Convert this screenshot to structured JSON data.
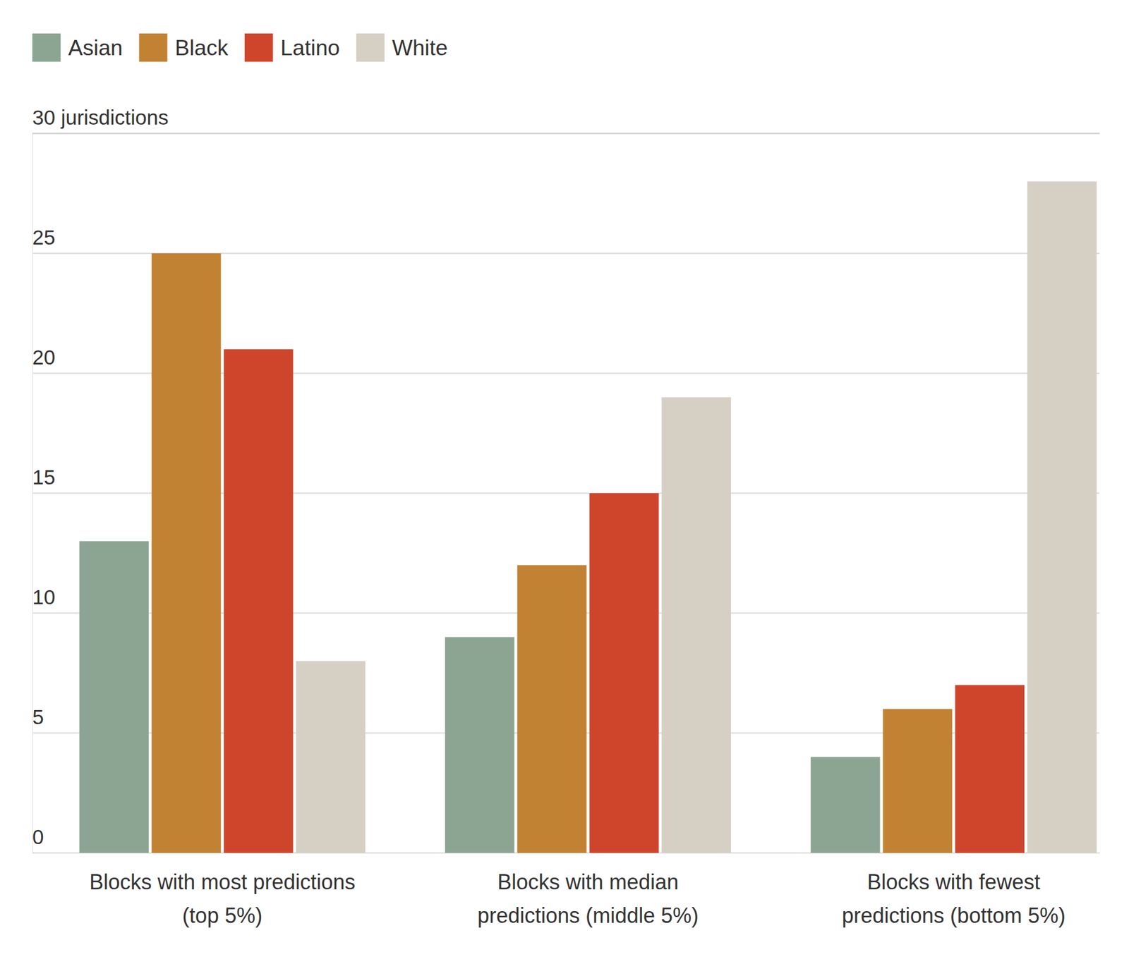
{
  "chart_data": {
    "type": "bar",
    "categories": [
      "Blocks with most predictions\n(top 5%)",
      "Blocks with median\npredictions (middle 5%)",
      "Blocks with fewest\npredictions (bottom 5%)"
    ],
    "series": [
      {
        "name": "Asian",
        "color": "#8ca593",
        "values": [
          13,
          9,
          4
        ]
      },
      {
        "name": "Black",
        "color": "#c28233",
        "values": [
          25,
          12,
          6
        ]
      },
      {
        "name": "Latino",
        "color": "#cf452c",
        "values": [
          21,
          15,
          7
        ]
      },
      {
        "name": "White",
        "color": "#d6cfc4",
        "values": [
          8,
          19,
          28
        ]
      }
    ],
    "ylim": [
      0,
      30
    ],
    "yticks": [
      0,
      5,
      10,
      15,
      20,
      25,
      {
        "value": 30,
        "label": "30 jurisdictions"
      }
    ],
    "grid": true,
    "legend": "top-left"
  }
}
